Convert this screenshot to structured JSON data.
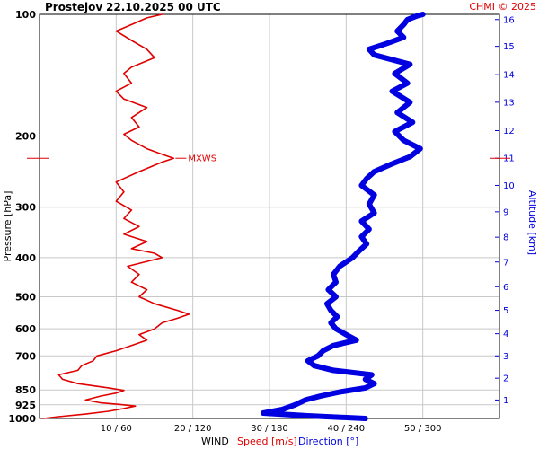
{
  "header": {
    "station": "Prostejov",
    "datetime": "22.10.2025 00 UTC",
    "copyright": "CHMI © 2025"
  },
  "axes": {
    "left_label": "Pressure [hPa]",
    "right_label": "Altitude [km]",
    "bottom_caption": "WIND",
    "speed_label": "Speed [m/s]",
    "direction_label": "Direction [°]"
  },
  "colors": {
    "speed": "#e00000",
    "direction": "#0000e0",
    "grid": "#c8c8c8"
  },
  "chart_data": {
    "type": "line",
    "title": "Prostejov 22.10.2025 00 UTC",
    "y_axis": {
      "label": "Pressure [hPa]",
      "scale": "log",
      "range": [
        1000,
        100
      ],
      "ticks": [
        100,
        200,
        300,
        400,
        500,
        600,
        700,
        850,
        925,
        1000
      ]
    },
    "y2_axis": {
      "label": "Altitude [km]",
      "ticks": [
        {
          "label": "1",
          "p": 900
        },
        {
          "label": "2",
          "p": 795
        },
        {
          "label": "3",
          "p": 700
        },
        {
          "label": "4",
          "p": 617
        },
        {
          "label": "5",
          "p": 540
        },
        {
          "label": "6",
          "p": 472
        },
        {
          "label": "7",
          "p": 410
        },
        {
          "label": "8",
          "p": 356
        },
        {
          "label": "9",
          "p": 308
        },
        {
          "label": "10",
          "p": 265
        },
        {
          "label": "11",
          "p": 227
        },
        {
          "label": "12",
          "p": 194
        },
        {
          "label": "13",
          "p": 165
        },
        {
          "label": "14",
          "p": 141
        },
        {
          "label": "15",
          "p": 120
        },
        {
          "label": "16",
          "p": 103
        }
      ]
    },
    "x_axis": {
      "caption": "WIND",
      "speed_range": [
        0,
        60
      ],
      "direction_range": [
        0,
        360
      ],
      "ticks": [
        {
          "label": "10 / 60",
          "speed": 10
        },
        {
          "label": "20 / 120",
          "speed": 20
        },
        {
          "label": "30 / 180",
          "speed": 30
        },
        {
          "label": "40 / 240",
          "speed": 40
        },
        {
          "label": "50 / 300",
          "speed": 50
        }
      ]
    },
    "grid": true,
    "annotations": [
      {
        "text": "MXWS",
        "p": 227
      }
    ],
    "series": [
      {
        "name": "Speed [m/s]",
        "color": "#e00000",
        "unit": "m/s",
        "points": [
          [
            1000,
            0.5
          ],
          [
            990,
            2.5
          ],
          [
            975,
            6
          ],
          [
            960,
            9
          ],
          [
            945,
            11
          ],
          [
            932,
            12.5
          ],
          [
            925,
            11
          ],
          [
            915,
            8
          ],
          [
            900,
            6
          ],
          [
            880,
            8
          ],
          [
            865,
            10
          ],
          [
            852,
            11
          ],
          [
            840,
            9
          ],
          [
            820,
            5
          ],
          [
            800,
            3
          ],
          [
            780,
            2.5
          ],
          [
            760,
            5
          ],
          [
            740,
            5.5
          ],
          [
            720,
            7
          ],
          [
            700,
            7.5
          ],
          [
            680,
            10
          ],
          [
            660,
            12
          ],
          [
            640,
            14
          ],
          [
            620,
            13
          ],
          [
            600,
            15
          ],
          [
            580,
            16
          ],
          [
            565,
            18
          ],
          [
            552,
            19.5
          ],
          [
            540,
            18
          ],
          [
            520,
            15
          ],
          [
            500,
            13
          ],
          [
            480,
            14
          ],
          [
            460,
            12
          ],
          [
            440,
            13
          ],
          [
            420,
            11.5
          ],
          [
            400,
            16
          ],
          [
            390,
            15
          ],
          [
            380,
            12
          ],
          [
            365,
            14
          ],
          [
            350,
            11
          ],
          [
            335,
            13
          ],
          [
            320,
            11
          ],
          [
            305,
            12
          ],
          [
            290,
            10
          ],
          [
            275,
            11
          ],
          [
            260,
            10
          ],
          [
            245,
            13
          ],
          [
            232,
            16
          ],
          [
            227,
            17.5
          ],
          [
            222,
            16
          ],
          [
            215,
            14
          ],
          [
            205,
            12
          ],
          [
            198,
            11
          ],
          [
            190,
            13
          ],
          [
            180,
            12
          ],
          [
            170,
            14
          ],
          [
            162,
            11
          ],
          [
            155,
            10
          ],
          [
            148,
            12
          ],
          [
            140,
            11
          ],
          [
            135,
            12
          ],
          [
            128,
            15
          ],
          [
            122,
            14
          ],
          [
            116,
            12
          ],
          [
            110,
            10
          ],
          [
            106,
            12
          ],
          [
            102,
            14
          ],
          [
            100,
            16
          ]
        ]
      },
      {
        "name": "Direction [°]",
        "color": "#0000e0",
        "unit": "deg",
        "points": [
          [
            1000,
            255
          ],
          [
            985,
            210
          ],
          [
            970,
            175
          ],
          [
            950,
            190
          ],
          [
            925,
            200
          ],
          [
            900,
            208
          ],
          [
            880,
            220
          ],
          [
            860,
            235
          ],
          [
            840,
            255
          ],
          [
            820,
            262
          ],
          [
            800,
            255
          ],
          [
            780,
            260
          ],
          [
            760,
            230
          ],
          [
            740,
            215
          ],
          [
            720,
            210
          ],
          [
            700,
            218
          ],
          [
            680,
            222
          ],
          [
            660,
            230
          ],
          [
            640,
            248
          ],
          [
            620,
            240
          ],
          [
            600,
            232
          ],
          [
            580,
            228
          ],
          [
            560,
            233
          ],
          [
            540,
            228
          ],
          [
            520,
            225
          ],
          [
            500,
            232
          ],
          [
            480,
            226
          ],
          [
            460,
            232
          ],
          [
            440,
            230
          ],
          [
            420,
            235
          ],
          [
            400,
            245
          ],
          [
            385,
            250
          ],
          [
            370,
            256
          ],
          [
            355,
            252
          ],
          [
            340,
            258
          ],
          [
            325,
            252
          ],
          [
            310,
            262
          ],
          [
            295,
            258
          ],
          [
            280,
            262
          ],
          [
            265,
            252
          ],
          [
            255,
            256
          ],
          [
            245,
            262
          ],
          [
            235,
            275
          ],
          [
            225,
            290
          ],
          [
            215,
            298
          ],
          [
            205,
            285
          ],
          [
            195,
            278
          ],
          [
            185,
            292
          ],
          [
            175,
            280
          ],
          [
            165,
            290
          ],
          [
            155,
            276
          ],
          [
            148,
            288
          ],
          [
            140,
            278
          ],
          [
            133,
            290
          ],
          [
            126,
            262
          ],
          [
            122,
            258
          ],
          [
            118,
            272
          ],
          [
            114,
            285
          ],
          [
            110,
            280
          ],
          [
            106,
            285
          ],
          [
            103,
            288
          ],
          [
            101,
            295
          ],
          [
            100,
            300
          ]
        ]
      }
    ]
  }
}
